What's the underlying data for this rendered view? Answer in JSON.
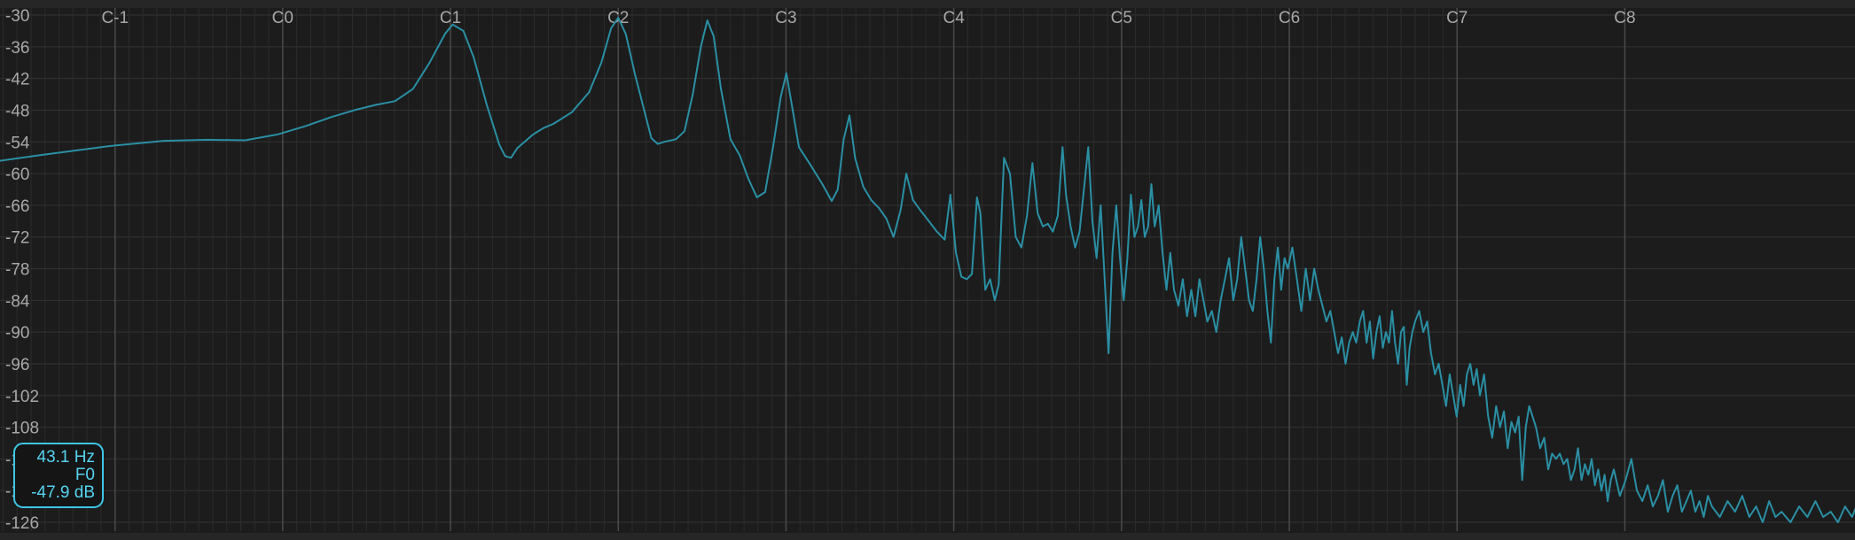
{
  "chart_data": {
    "type": "line",
    "title": "",
    "xlabel": "",
    "ylabel": "",
    "x_scale": "log",
    "y_unit": "dB",
    "ylim": [
      -126,
      -30
    ],
    "y_ticks": [
      -30,
      -36,
      -42,
      -48,
      -54,
      -60,
      -66,
      -72,
      -78,
      -84,
      -90,
      -96,
      -102,
      -108,
      -114,
      -120,
      -126
    ],
    "x_ticks": [
      {
        "label": "C-1",
        "hz": 8.18
      },
      {
        "label": "C0",
        "hz": 16.35
      },
      {
        "label": "C1",
        "hz": 32.7
      },
      {
        "label": "C2",
        "hz": 65.41
      },
      {
        "label": "C3",
        "hz": 130.81
      },
      {
        "label": "C4",
        "hz": 261.63
      },
      {
        "label": "C5",
        "hz": 523.25
      },
      {
        "label": "C6",
        "hz": 1046.5
      },
      {
        "label": "C7",
        "hz": 2093.0
      },
      {
        "label": "C8",
        "hz": 4186.0
      }
    ],
    "grid": true,
    "line_color": "#2a8fa4",
    "series": [
      {
        "points": [
          [
            5.0,
            -57.7
          ],
          [
            6.0,
            -56.5
          ],
          [
            8.0,
            -54.8
          ],
          [
            10.0,
            -53.8
          ],
          [
            12.0,
            -53.6
          ],
          [
            14.0,
            -53.7
          ],
          [
            16.0,
            -52.6
          ],
          [
            18.0,
            -51.0
          ],
          [
            20.0,
            -49.3
          ],
          [
            22.0,
            -48.0
          ],
          [
            24.0,
            -47.0
          ],
          [
            26.0,
            -46.3
          ],
          [
            28.0,
            -44.0
          ],
          [
            30.0,
            -39.0
          ],
          [
            32.0,
            -33.5
          ],
          [
            33.0,
            -31.8
          ],
          [
            34.5,
            -33.0
          ],
          [
            36.0,
            -38.0
          ],
          [
            38.0,
            -47.0
          ],
          [
            40.0,
            -54.5
          ],
          [
            41.0,
            -56.7
          ],
          [
            42.0,
            -57.0
          ],
          [
            43.1,
            -55.2
          ],
          [
            46.0,
            -52.6
          ],
          [
            48.0,
            -51.4
          ],
          [
            50.0,
            -50.6
          ],
          [
            54.0,
            -48.4
          ],
          [
            58.0,
            -44.6
          ],
          [
            61.0,
            -39.0
          ],
          [
            63.5,
            -32.5
          ],
          [
            65.4,
            -30.5
          ],
          [
            67.5,
            -33.6
          ],
          [
            70.0,
            -41.0
          ],
          [
            73.0,
            -48.5
          ],
          [
            75.0,
            -53.3
          ],
          [
            77.0,
            -54.4
          ],
          [
            79.0,
            -54.0
          ],
          [
            83.0,
            -53.5
          ],
          [
            86.0,
            -52.0
          ],
          [
            89.0,
            -45.0
          ],
          [
            92.0,
            -36.0
          ],
          [
            94.5,
            -31.0
          ],
          [
            97.0,
            -34.0
          ],
          [
            100.0,
            -44.0
          ],
          [
            104.0,
            -53.5
          ],
          [
            108.0,
            -56.5
          ],
          [
            112.0,
            -61.0
          ],
          [
            116.0,
            -64.5
          ],
          [
            120.0,
            -63.5
          ],
          [
            124.0,
            -55.0
          ],
          [
            128.0,
            -45.5
          ],
          [
            131.0,
            -41.0
          ],
          [
            134.0,
            -47.0
          ],
          [
            138.0,
            -55.0
          ],
          [
            145.0,
            -58.5
          ],
          [
            152.0,
            -62.0
          ],
          [
            158.0,
            -65.2
          ],
          [
            162.0,
            -63.0
          ],
          [
            166.0,
            -53.5
          ],
          [
            170.0,
            -49.0
          ],
          [
            174.0,
            -57.0
          ],
          [
            180.0,
            -62.5
          ],
          [
            186.0,
            -65.0
          ],
          [
            192.0,
            -66.5
          ],
          [
            198.0,
            -68.5
          ],
          [
            204.0,
            -72.0
          ],
          [
            210.0,
            -67.0
          ],
          [
            215.0,
            -60.0
          ],
          [
            221.0,
            -65.0
          ],
          [
            228.0,
            -67.0
          ],
          [
            236.0,
            -69.0
          ],
          [
            244.0,
            -71.0
          ],
          [
            252.0,
            -72.5
          ],
          [
            258.0,
            -64.0
          ],
          [
            264.0,
            -75.0
          ],
          [
            270.0,
            -79.5
          ],
          [
            276.0,
            -80.0
          ],
          [
            282.0,
            -79.0
          ],
          [
            288.0,
            -64.5
          ],
          [
            292.0,
            -67.5
          ],
          [
            298.0,
            -82.0
          ],
          [
            304.0,
            -80.0
          ],
          [
            310.0,
            -84.0
          ],
          [
            315.0,
            -81.0
          ],
          [
            322.0,
            -57.0
          ],
          [
            330.0,
            -60.0
          ],
          [
            338.0,
            -72.0
          ],
          [
            346.0,
            -74.0
          ],
          [
            354.0,
            -68.0
          ],
          [
            362.0,
            -58.0
          ],
          [
            370.0,
            -67.5
          ],
          [
            378.0,
            -70.0
          ],
          [
            386.0,
            -69.5
          ],
          [
            394.0,
            -71.0
          ],
          [
            402.0,
            -68.0
          ],
          [
            410.0,
            -55.0
          ],
          [
            416.0,
            -64.0
          ],
          [
            424.0,
            -70.0
          ],
          [
            432.0,
            -74.0
          ],
          [
            440.0,
            -71.0
          ],
          [
            448.0,
            -63.0
          ],
          [
            456.0,
            -55.0
          ],
          [
            464.0,
            -69.0
          ],
          [
            472.0,
            -76.0
          ],
          [
            480.0,
            -66.0
          ],
          [
            488.0,
            -80.0
          ],
          [
            496.0,
            -94.0
          ],
          [
            504.0,
            -75.0
          ],
          [
            512.0,
            -66.0
          ],
          [
            520.0,
            -76.0
          ],
          [
            528.0,
            -84.0
          ],
          [
            536.0,
            -76.0
          ],
          [
            544.0,
            -64.0
          ],
          [
            552.0,
            -72.0
          ],
          [
            560.0,
            -70.0
          ],
          [
            568.0,
            -65.0
          ],
          [
            576.0,
            -72.0
          ],
          [
            584.0,
            -70.0
          ],
          [
            592.0,
            -62.0
          ],
          [
            600.0,
            -70.0
          ],
          [
            610.0,
            -66.0
          ],
          [
            620.0,
            -75.0
          ],
          [
            630.0,
            -82.0
          ],
          [
            640.0,
            -75.0
          ],
          [
            650.0,
            -82.0
          ],
          [
            662.0,
            -85.0
          ],
          [
            674.0,
            -80.0
          ],
          [
            686.0,
            -87.0
          ],
          [
            698.0,
            -82.0
          ],
          [
            710.0,
            -87.0
          ],
          [
            722.0,
            -80.0
          ],
          [
            734.0,
            -84.0
          ],
          [
            746.0,
            -88.0
          ],
          [
            760.0,
            -86.0
          ],
          [
            774.0,
            -90.0
          ],
          [
            788.0,
            -84.0
          ],
          [
            802.0,
            -80.0
          ],
          [
            816.0,
            -76.0
          ],
          [
            830.0,
            -84.0
          ],
          [
            844.0,
            -80.0
          ],
          [
            858.0,
            -72.0
          ],
          [
            872.0,
            -78.0
          ],
          [
            886.0,
            -84.0
          ],
          [
            900.0,
            -86.0
          ],
          [
            914.0,
            -80.0
          ],
          [
            928.0,
            -72.0
          ],
          [
            942.0,
            -78.0
          ],
          [
            956.0,
            -86.0
          ],
          [
            970.0,
            -92.0
          ],
          [
            984.0,
            -80.0
          ],
          [
            998.0,
            -74.0
          ],
          [
            1012.0,
            -82.0
          ],
          [
            1026.0,
            -76.0
          ],
          [
            1040.0,
            -78.0
          ],
          [
            1060.0,
            -74.0
          ],
          [
            1080.0,
            -80.0
          ],
          [
            1100.0,
            -86.0
          ],
          [
            1120.0,
            -78.0
          ],
          [
            1140.0,
            -84.0
          ],
          [
            1160.0,
            -78.0
          ],
          [
            1180.0,
            -82.0
          ],
          [
            1200.0,
            -85.0
          ],
          [
            1220.0,
            -88.0
          ],
          [
            1240.0,
            -86.0
          ],
          [
            1260.0,
            -90.0
          ],
          [
            1280.0,
            -94.0
          ],
          [
            1300.0,
            -91.0
          ],
          [
            1320.0,
            -96.0
          ],
          [
            1340.0,
            -92.0
          ],
          [
            1360.0,
            -90.0
          ],
          [
            1380.0,
            -92.0
          ],
          [
            1400.0,
            -88.0
          ],
          [
            1420.0,
            -86.0
          ],
          [
            1440.0,
            -92.0
          ],
          [
            1460.0,
            -88.0
          ],
          [
            1480.0,
            -95.0
          ],
          [
            1500.0,
            -90.0
          ],
          [
            1520.0,
            -87.0
          ],
          [
            1540.0,
            -93.0
          ],
          [
            1560.0,
            -90.0
          ],
          [
            1580.0,
            -92.0
          ],
          [
            1600.0,
            -86.0
          ],
          [
            1620.0,
            -92.0
          ],
          [
            1640.0,
            -96.0
          ],
          [
            1660.0,
            -90.0
          ],
          [
            1680.0,
            -89.0
          ],
          [
            1700.0,
            -100.0
          ],
          [
            1720.0,
            -93.0
          ],
          [
            1740.0,
            -90.0
          ],
          [
            1760.0,
            -88.0
          ],
          [
            1790.0,
            -86.0
          ],
          [
            1820.0,
            -90.0
          ],
          [
            1850.0,
            -88.0
          ],
          [
            1880.0,
            -94.0
          ],
          [
            1910.0,
            -98.0
          ],
          [
            1940.0,
            -96.0
          ],
          [
            1970.0,
            -100.0
          ],
          [
            2000.0,
            -104.0
          ],
          [
            2030.0,
            -98.0
          ],
          [
            2060.0,
            -102.0
          ],
          [
            2090.0,
            -106.0
          ],
          [
            2120.0,
            -100.0
          ],
          [
            2150.0,
            -104.0
          ],
          [
            2180.0,
            -98.0
          ],
          [
            2210.0,
            -96.0
          ],
          [
            2240.0,
            -100.0
          ],
          [
            2270.0,
            -97.0
          ],
          [
            2300.0,
            -102.0
          ],
          [
            2340.0,
            -98.0
          ],
          [
            2380.0,
            -106.0
          ],
          [
            2420.0,
            -110.0
          ],
          [
            2460.0,
            -104.0
          ],
          [
            2500.0,
            -108.0
          ],
          [
            2540.0,
            -105.0
          ],
          [
            2580.0,
            -112.0
          ],
          [
            2620.0,
            -107.0
          ],
          [
            2660.0,
            -109.0
          ],
          [
            2700.0,
            -106.0
          ],
          [
            2740.0,
            -118.0
          ],
          [
            2780.0,
            -108.0
          ],
          [
            2820.0,
            -104.0
          ],
          [
            2860.0,
            -106.0
          ],
          [
            2900.0,
            -108.0
          ],
          [
            2950.0,
            -112.0
          ],
          [
            3000.0,
            -110.0
          ],
          [
            3050.0,
            -116.0
          ],
          [
            3100.0,
            -113.0
          ],
          [
            3150.0,
            -114.0
          ],
          [
            3200.0,
            -113.0
          ],
          [
            3250.0,
            -115.0
          ],
          [
            3300.0,
            -114.0
          ],
          [
            3350.0,
            -118.0
          ],
          [
            3400.0,
            -116.0
          ],
          [
            3450.0,
            -112.0
          ],
          [
            3500.0,
            -118.0
          ],
          [
            3550.0,
            -115.0
          ],
          [
            3600.0,
            -117.0
          ],
          [
            3650.0,
            -114.0
          ],
          [
            3700.0,
            -119.0
          ],
          [
            3750.0,
            -116.0
          ],
          [
            3800.0,
            -120.0
          ],
          [
            3850.0,
            -117.0
          ],
          [
            3900.0,
            -122.0
          ],
          [
            3950.0,
            -118.0
          ],
          [
            4000.0,
            -116.0
          ],
          [
            4100.0,
            -121.0
          ],
          [
            4200.0,
            -118.0
          ],
          [
            4300.0,
            -114.0
          ],
          [
            4400.0,
            -120.0
          ],
          [
            4500.0,
            -122.0
          ],
          [
            4600.0,
            -119.0
          ],
          [
            4700.0,
            -123.0
          ],
          [
            4800.0,
            -121.0
          ],
          [
            4900.0,
            -118.0
          ],
          [
            5000.0,
            -124.0
          ],
          [
            5100.0,
            -121.0
          ],
          [
            5200.0,
            -119.0
          ],
          [
            5300.0,
            -124.0
          ],
          [
            5400.0,
            -122.0
          ],
          [
            5500.0,
            -120.0
          ],
          [
            5600.0,
            -124.0
          ],
          [
            5700.0,
            -122.0
          ],
          [
            5800.0,
            -125.0
          ],
          [
            5900.0,
            -121.0
          ],
          [
            6000.0,
            -123.0
          ],
          [
            6200.0,
            -125.0
          ],
          [
            6400.0,
            -122.0
          ],
          [
            6600.0,
            -124.0
          ],
          [
            6800.0,
            -121.0
          ],
          [
            7000.0,
            -125.0
          ],
          [
            7200.0,
            -123.0
          ],
          [
            7400.0,
            -126.0
          ],
          [
            7600.0,
            -122.0
          ],
          [
            7800.0,
            -125.0
          ],
          [
            8000.0,
            -124.0
          ],
          [
            8300.0,
            -126.0
          ],
          [
            8600.0,
            -123.0
          ],
          [
            8900.0,
            -125.0
          ],
          [
            9200.0,
            -122.0
          ],
          [
            9500.0,
            -125.0
          ],
          [
            9800.0,
            -124.0
          ],
          [
            10100.0,
            -126.0
          ],
          [
            10400.0,
            -123.0
          ],
          [
            10700.0,
            -125.0
          ],
          [
            11000.0,
            -122.0
          ],
          [
            11300.0,
            -124.0
          ],
          [
            11600.0,
            -126.0
          ],
          [
            11900.0,
            -124.0
          ],
          [
            12200.0,
            -125.0
          ],
          [
            12500.0,
            -123.0
          ],
          [
            12800.0,
            -126.0
          ]
        ]
      }
    ]
  },
  "readout": {
    "freq": "43.1 Hz",
    "note": "F0",
    "level": "-47.9 dB"
  }
}
